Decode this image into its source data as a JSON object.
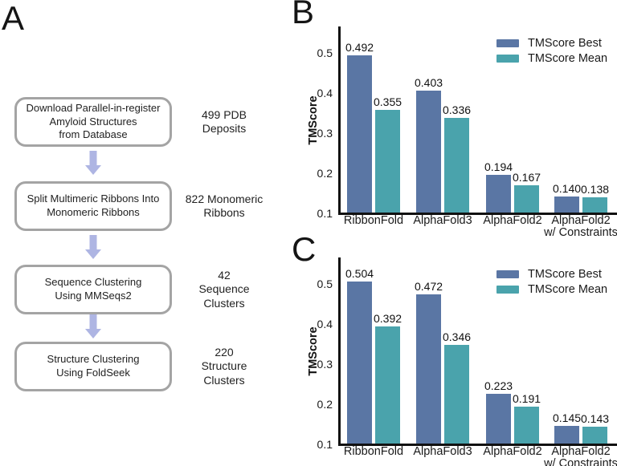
{
  "panel_a": {
    "letter": "A",
    "arrow_color": "#aeb5e3",
    "box_border_color": "#a4a4a4",
    "steps": [
      {
        "box_lines": [
          "Download Parallel-in-register",
          "Amyloid Structures",
          "from Database"
        ],
        "side_lines": [
          "499 PDB",
          "Deposits"
        ]
      },
      {
        "box_lines": [
          "Split Multimeric Ribbons Into",
          "Monomeric Ribbons"
        ],
        "side_lines": [
          "822 Monomeric",
          "Ribbons"
        ]
      },
      {
        "box_lines": [
          "Sequence Clustering",
          "Using MMSeqs2"
        ],
        "side_lines": [
          "42",
          "Sequence",
          "Clusters"
        ]
      },
      {
        "box_lines": [
          "Structure Clustering",
          "Using FoldSeek"
        ],
        "side_lines": [
          "220",
          "Structure",
          "Clusters"
        ]
      }
    ]
  },
  "chart_data": [
    {
      "panel_letter": "B",
      "type": "bar",
      "title": "",
      "xlabel": "",
      "ylabel": "TMScore",
      "ylim": [
        0.1,
        0.55
      ],
      "yticks": [
        "0.1",
        "0.2",
        "0.3",
        "0.4",
        "0.5"
      ],
      "grid": false,
      "legend_position": "top-right",
      "categories": [
        "RibbonFold",
        "AlphaFold3",
        "AlphaFold2",
        "AlphaFold2 w/ Constraints"
      ],
      "category_lines": [
        [
          "RibbonFold"
        ],
        [
          "AlphaFold3"
        ],
        [
          "AlphaFold2"
        ],
        [
          "AlphaFold2",
          "w/ Constraints"
        ]
      ],
      "series": [
        {
          "name": "TMScore Best",
          "color": "#5a76a4",
          "values": [
            0.492,
            0.403,
            0.194,
            0.14
          ],
          "labels": [
            "0.492",
            "0.403",
            "0.194",
            "0.140"
          ]
        },
        {
          "name": "TMScore Mean",
          "color": "#4aa3ac",
          "values": [
            0.355,
            0.336,
            0.167,
            0.138
          ],
          "labels": [
            "0.355",
            "0.336",
            "0.167",
            "0.138"
          ]
        }
      ]
    },
    {
      "panel_letter": "C",
      "type": "bar",
      "title": "",
      "xlabel": "",
      "ylabel": "TMScore",
      "ylim": [
        0.1,
        0.55
      ],
      "yticks": [
        "0.1",
        "0.2",
        "0.3",
        "0.4",
        "0.5"
      ],
      "grid": false,
      "legend_position": "top-right",
      "categories": [
        "RibbonFold",
        "AlphaFold3",
        "AlphaFold2",
        "AlphaFold2 w/ Constraints"
      ],
      "category_lines": [
        [
          "RibbonFold"
        ],
        [
          "AlphaFold3"
        ],
        [
          "AlphaFold2"
        ],
        [
          "AlphaFold2",
          "w/ Constraints"
        ]
      ],
      "series": [
        {
          "name": "TMScore Best",
          "color": "#5a76a4",
          "values": [
            0.504,
            0.472,
            0.223,
            0.145
          ],
          "labels": [
            "0.504",
            "0.472",
            "0.223",
            "0.145"
          ]
        },
        {
          "name": "TMScore Mean",
          "color": "#4aa3ac",
          "values": [
            0.392,
            0.346,
            0.191,
            0.143
          ],
          "labels": [
            "0.392",
            "0.346",
            "0.191",
            "0.143"
          ]
        }
      ]
    }
  ]
}
